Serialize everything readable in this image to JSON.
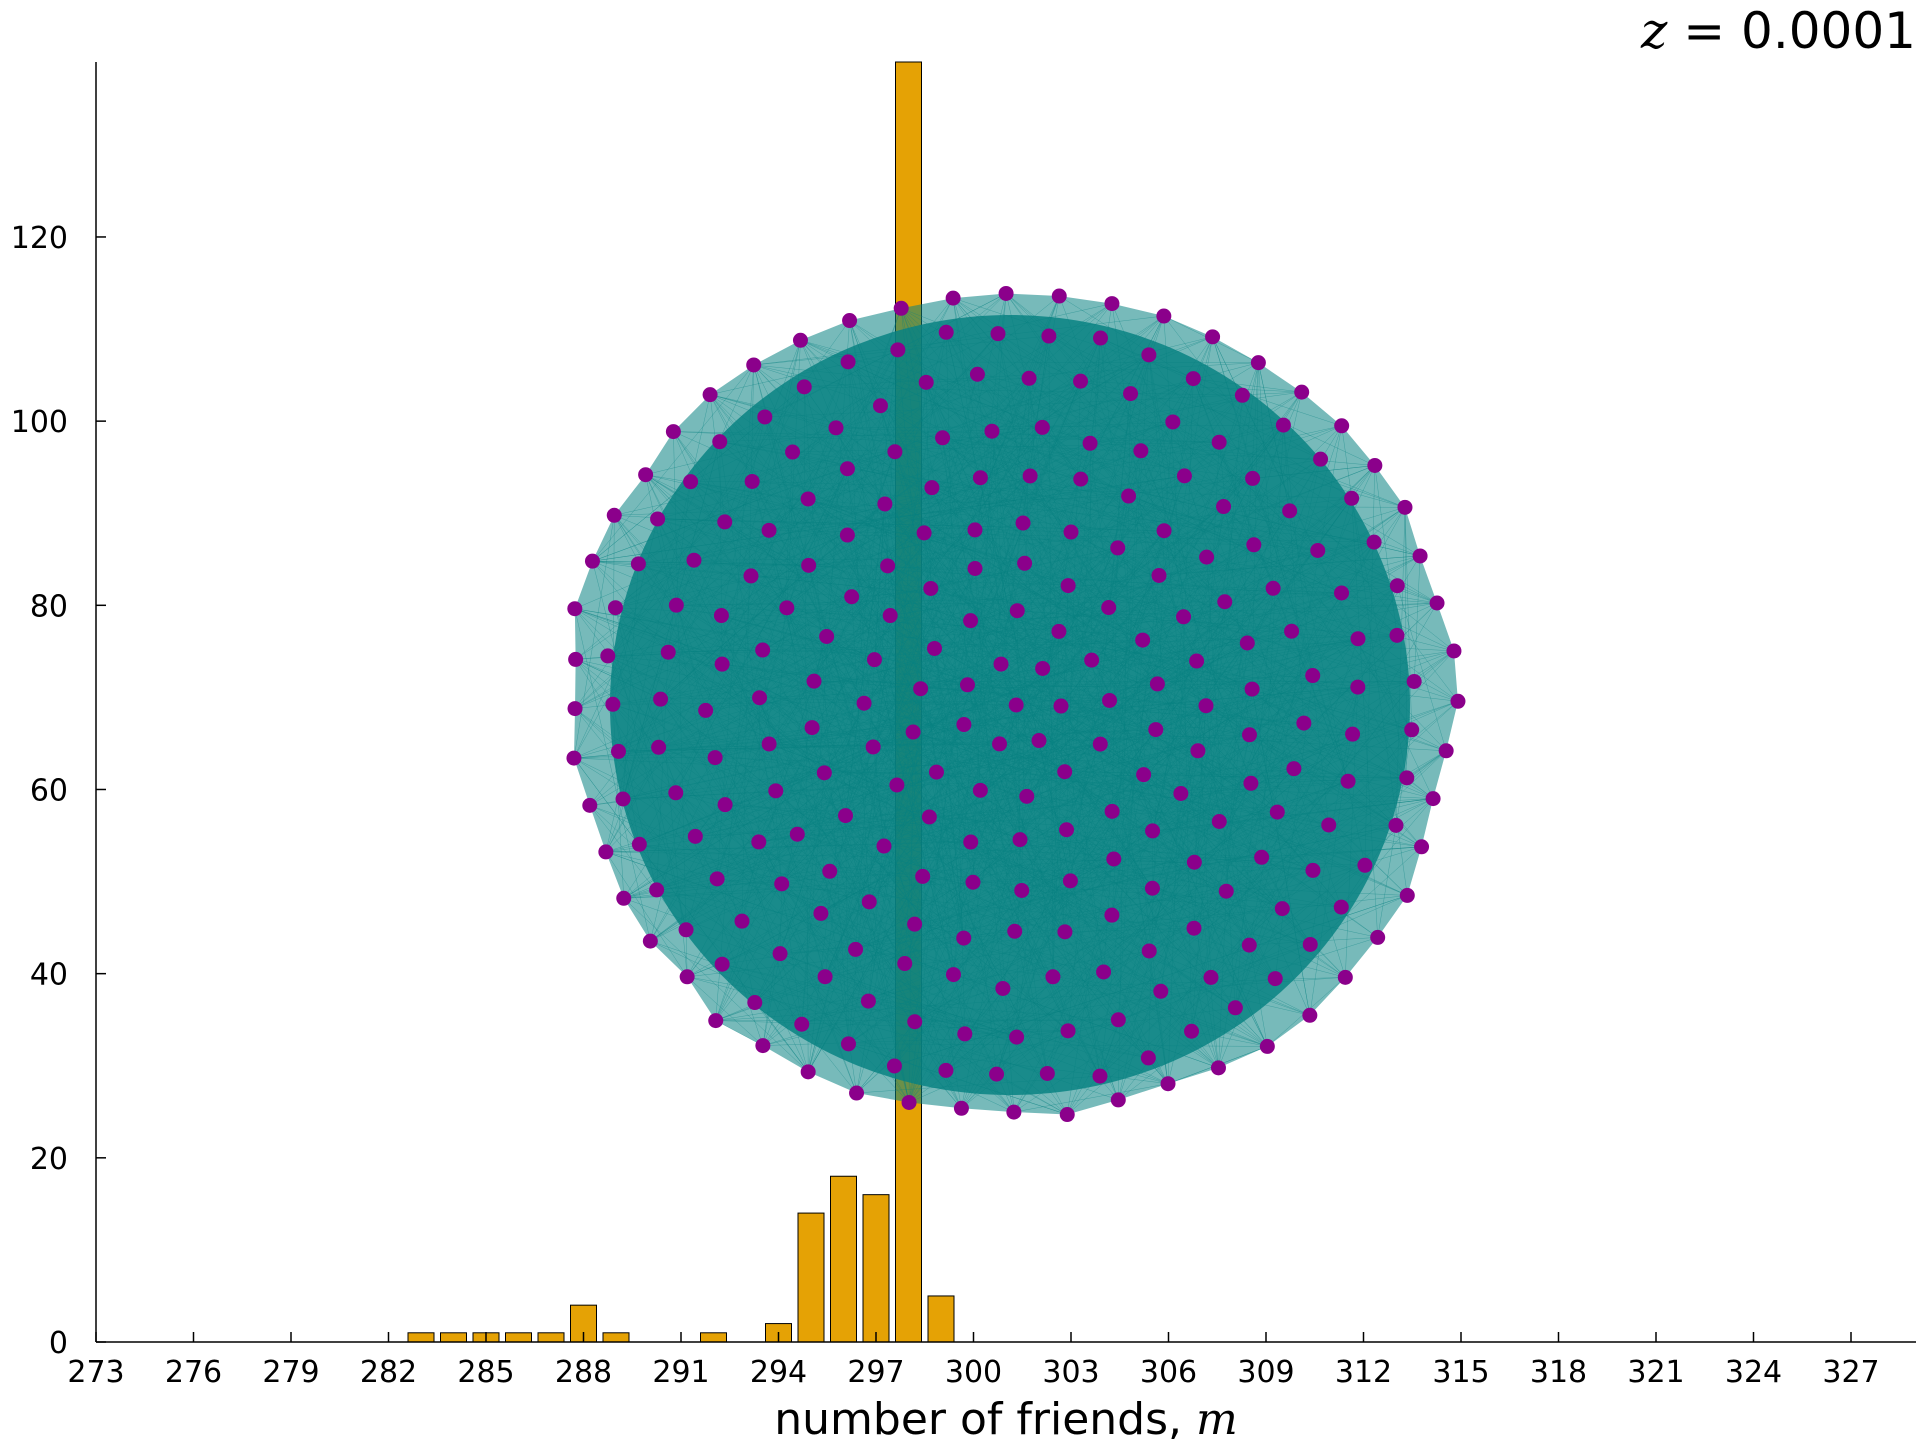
{
  "title_var": "z",
  "title_rest": " = 0.0001",
  "xlabel_text": "number of friends, ",
  "xlabel_var": "m",
  "colors": {
    "bar_fill": "#E5A205",
    "bar_stroke": "#000000",
    "node": "#8B008B",
    "edge": "#088282",
    "axis": "#000000"
  },
  "chart_data": {
    "type": "bar",
    "title": "z = 0.0001",
    "xlabel": "number of friends, m",
    "ylabel": "",
    "xlim": [
      273,
      329
    ],
    "ylim": [
      0,
      139
    ],
    "xticks": [
      273,
      276,
      279,
      282,
      285,
      288,
      291,
      294,
      297,
      300,
      303,
      306,
      309,
      312,
      315,
      318,
      321,
      324,
      327
    ],
    "yticks": [
      0,
      20,
      40,
      60,
      80,
      100,
      120
    ],
    "bar_width": 0.8,
    "bars": [
      {
        "x": 283,
        "count": 1
      },
      {
        "x": 284,
        "count": 1
      },
      {
        "x": 285,
        "count": 1
      },
      {
        "x": 286,
        "count": 1
      },
      {
        "x": 287,
        "count": 1
      },
      {
        "x": 288,
        "count": 4
      },
      {
        "x": 289,
        "count": 1
      },
      {
        "x": 292,
        "count": 1
      },
      {
        "x": 294,
        "count": 2
      },
      {
        "x": 295,
        "count": 14
      },
      {
        "x": 296,
        "count": 18
      },
      {
        "x": 297,
        "count": 16
      },
      {
        "x": 298,
        "count": 139
      },
      {
        "x": 299,
        "count": 5
      }
    ],
    "grid": false,
    "overlay": "network graph of 300 nodes (purple) connected by dense teal edges, drawn over the histogram"
  }
}
